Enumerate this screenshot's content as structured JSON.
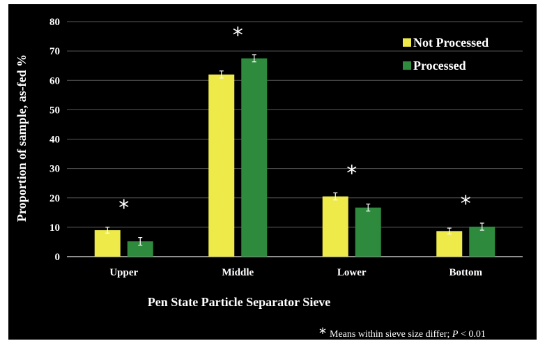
{
  "chart_data": {
    "type": "bar",
    "categories": [
      "Upper",
      "Middle",
      "Lower",
      "Bottom"
    ],
    "series": [
      {
        "name": "Not Processed",
        "color": "#eeea4a",
        "values": [
          9.0,
          62.0,
          20.5,
          8.7
        ],
        "errors": [
          1.0,
          1.2,
          1.2,
          1.0
        ]
      },
      {
        "name": "Processed",
        "color": "#2e8b3e",
        "values": [
          5.2,
          67.5,
          16.7,
          10.2
        ],
        "errors": [
          1.3,
          1.2,
          1.2,
          1.2
        ]
      }
    ],
    "ylim": [
      0,
      80
    ],
    "yticks": [
      0,
      10,
      20,
      30,
      40,
      50,
      60,
      70,
      80
    ],
    "ylabel": "Proportion of sample, as-fed %",
    "xlabel": "Pen State Particle Separator Sieve",
    "significance_marker": "*",
    "significant": [
      true,
      true,
      true,
      true
    ],
    "legend_position": "top-right",
    "grid": true,
    "footnote": {
      "marker": "*",
      "text": "Means within sieve size differ; ",
      "p_symbol": "P",
      "p_condition": " < 0.01"
    }
  }
}
